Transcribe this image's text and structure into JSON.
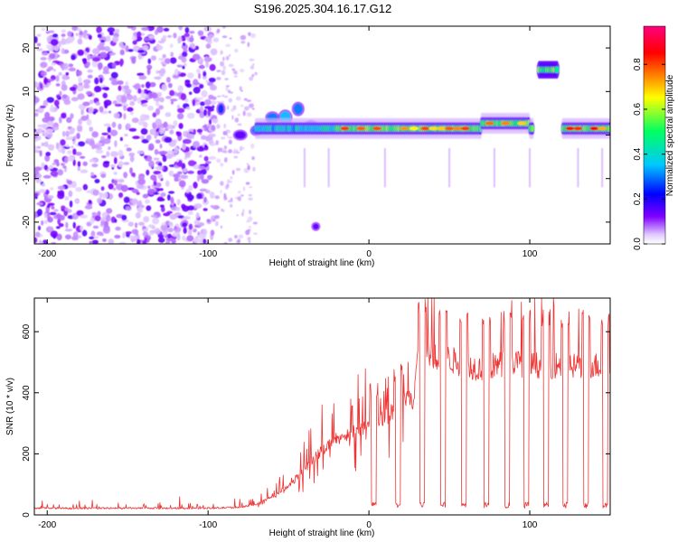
{
  "title": "S196.2025.304.16.17.G12",
  "chart_data": [
    {
      "type": "heatmap",
      "name": "spectrogram",
      "xlabel": "Height of straight line (km)",
      "ylabel": "Frequency (Hz)",
      "xlim": [
        -208,
        150
      ],
      "ylim": [
        -25,
        25
      ],
      "xticks": [
        -200,
        -100,
        0,
        100
      ],
      "yticks": [
        20,
        10,
        0,
        -10,
        -20
      ],
      "colorbar": {
        "label": "Normalized spectral amplitude",
        "range": [
          0,
          0.97
        ],
        "ticks": [
          0.0,
          0.2,
          0.4,
          0.6,
          0.8
        ],
        "colors": [
          "#ffffff",
          "#e0c8ff",
          "#8000ff",
          "#0000ff",
          "#00c8ff",
          "#00ff60",
          "#ffff00",
          "#ff8000",
          "#ff0000",
          "#ff0080"
        ]
      },
      "features": [
        {
          "region": "broadband noise",
          "x_range": [
            -208,
            -95
          ],
          "y_range": [
            -25,
            25
          ],
          "amplitude": 0.08
        },
        {
          "region": "scattered noise",
          "x_range": [
            -95,
            -70
          ],
          "y_range": [
            -25,
            25
          ],
          "amplitude": 0.05
        },
        {
          "region": "main band",
          "x_range": [
            -70,
            150
          ],
          "frequency_hz": 1.5,
          "amplitude": 0.75
        },
        {
          "region": "high band",
          "x_range": [
            106,
            118
          ],
          "frequency_hz": 15,
          "amplitude": 0.5
        }
      ]
    },
    {
      "type": "line",
      "name": "snr",
      "xlabel": "Height of straight line (km)",
      "ylabel": "SNR (10 * v/v)",
      "xlim": [
        -208,
        150
      ],
      "ylim": [
        0,
        710
      ],
      "xticks": [
        -200,
        -100,
        0,
        100
      ],
      "yticks": [
        0,
        200,
        400,
        600
      ],
      "color": "#ee3333",
      "series": [
        {
          "name": "SNR",
          "x": [
            -208,
            -150,
            -100,
            -80,
            -70,
            -60,
            -50,
            -40,
            -30,
            -20,
            -10,
            0,
            10,
            20,
            25,
            28,
            30,
            40,
            50,
            60,
            70,
            80,
            90,
            100,
            110,
            120,
            130,
            140,
            150
          ],
          "values": [
            22,
            22,
            22,
            25,
            35,
            60,
            95,
            150,
            210,
            250,
            270,
            300,
            320,
            360,
            380,
            380,
            520,
            520,
            510,
            490,
            480,
            490,
            500,
            490,
            490,
            490,
            490,
            490,
            480
          ]
        }
      ],
      "dropout_centers": [
        3,
        18,
        33,
        46,
        59,
        73,
        86,
        98,
        110,
        122,
        135,
        147
      ]
    }
  ]
}
